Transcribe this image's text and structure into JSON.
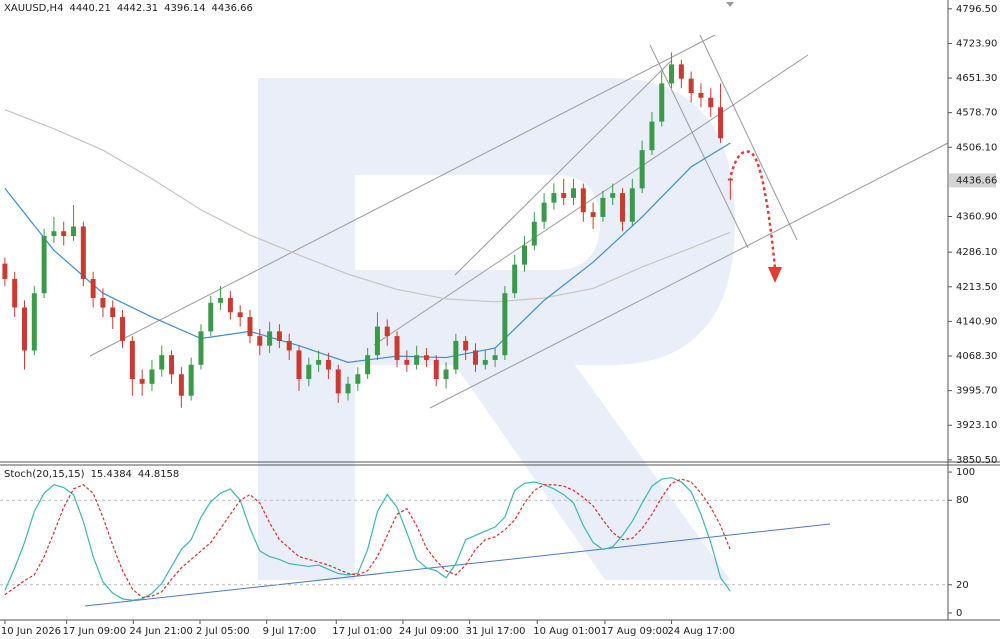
{
  "chart_data": [
    {
      "type": "candlestick",
      "title": "XAUUSD,H4",
      "up_color": "#3a9a4a",
      "down_color": "#c93a32",
      "open": [
        4262,
        4230,
        4170,
        4080,
        4200,
        4320,
        4330,
        4320,
        4340,
        4230,
        4190,
        4170,
        4150,
        4100,
        4020,
        4010,
        4040,
        4070,
        4030,
        3985,
        4050,
        4120,
        4180,
        4190,
        4160,
        4150,
        4110,
        4090,
        4120,
        4100,
        4080,
        4020,
        4050,
        4060,
        4040,
        3990,
        4010,
        4030,
        4070,
        4130,
        4110,
        4060,
        4050,
        4070,
        4060,
        4020,
        4040,
        4100,
        4080,
        4050,
        4060,
        4070,
        4200,
        4260,
        4300,
        4350,
        4390,
        4410,
        4400,
        4420,
        4370,
        4360,
        4400,
        4410,
        4350,
        4420,
        4500,
        4560,
        4640,
        4680,
        4650,
        4620,
        4610,
        4590,
        4440.21
      ],
      "high": [
        4275,
        4245,
        4185,
        4215,
        4335,
        4360,
        4350,
        4385,
        4350,
        4245,
        4210,
        4185,
        4165,
        4110,
        4040,
        4060,
        4090,
        4080,
        4045,
        4065,
        4135,
        4195,
        4215,
        4205,
        4175,
        4165,
        4125,
        4140,
        4135,
        4115,
        4090,
        4065,
        4080,
        4075,
        4050,
        4025,
        4045,
        4085,
        4160,
        4145,
        4120,
        4080,
        4090,
        4085,
        4070,
        4055,
        4115,
        4110,
        4095,
        4080,
        4085,
        4215,
        4280,
        4320,
        4370,
        4410,
        4430,
        4440,
        4440,
        4430,
        4390,
        4415,
        4430,
        4420,
        4440,
        4520,
        4580,
        4665,
        4705,
        4690,
        4665,
        4640,
        4630,
        4640,
        4442.31
      ],
      "low": [
        4215,
        4150,
        4040,
        4070,
        4190,
        4305,
        4300,
        4310,
        4215,
        4170,
        4150,
        4125,
        4085,
        3985,
        3985,
        3995,
        4025,
        4010,
        3960,
        3975,
        4040,
        4110,
        4165,
        4145,
        4130,
        4095,
        4070,
        4075,
        4085,
        4060,
        3995,
        4005,
        4035,
        4020,
        3970,
        3975,
        3995,
        4020,
        4060,
        4090,
        4045,
        4035,
        4040,
        4045,
        4005,
        4000,
        4030,
        4060,
        4035,
        4040,
        4045,
        4060,
        4190,
        4245,
        4290,
        4335,
        4375,
        4385,
        4385,
        4350,
        4335,
        4350,
        4385,
        4330,
        4340,
        4410,
        4490,
        4550,
        4630,
        4630,
        4600,
        4590,
        4570,
        4515,
        4396.14
      ],
      "close": [
        4230,
        4170,
        4080,
        4200,
        4320,
        4330,
        4320,
        4340,
        4230,
        4190,
        4170,
        4150,
        4100,
        4020,
        4010,
        4040,
        4070,
        4030,
        3985,
        4050,
        4120,
        4180,
        4190,
        4160,
        4150,
        4110,
        4090,
        4120,
        4100,
        4080,
        4020,
        4050,
        4060,
        4040,
        3990,
        4010,
        4030,
        4070,
        4130,
        4110,
        4060,
        4050,
        4070,
        4060,
        4020,
        4040,
        4100,
        4080,
        4050,
        4060,
        4070,
        4200,
        4260,
        4300,
        4350,
        4390,
        4410,
        4400,
        4420,
        4370,
        4360,
        4400,
        4410,
        4350,
        4420,
        4500,
        4560,
        4640,
        4680,
        4650,
        4620,
        4610,
        4590,
        4525,
        4436.66
      ],
      "lines": [
        {
          "color": "#c9c4bd",
          "x": [
            0,
            5,
            10,
            15,
            20,
            25,
            30,
            35,
            40,
            45,
            50,
            55,
            60,
            65,
            70,
            74
          ],
          "values": [
            4585,
            4545,
            4500,
            4440,
            4375,
            4322,
            4280,
            4240,
            4208,
            4188,
            4182,
            4190,
            4210,
            4255,
            4295,
            4328
          ]
        },
        {
          "color": "#3d8fd1",
          "x": [
            0,
            5,
            10,
            15,
            20,
            25,
            30,
            35,
            40,
            45,
            50,
            55,
            60,
            65,
            70,
            74
          ],
          "values": [
            4420,
            4290,
            4200,
            4150,
            4105,
            4120,
            4090,
            4055,
            4068,
            4065,
            4085,
            4185,
            4265,
            4360,
            4465,
            4515
          ]
        }
      ],
      "xlim": [
        -0.5,
        96.2
      ],
      "xticks": [
        {
          "value": 0,
          "label": "10 Jun 2026"
        },
        {
          "value": 6.3,
          "label": "17 Jun 09:00"
        },
        {
          "value": 13.1,
          "label": "24 Jun 21:00"
        },
        {
          "value": 19.9,
          "label": "2 Jul 05:00"
        },
        {
          "value": 26.7,
          "label": "9 Jul 17:00"
        },
        {
          "value": 33.8,
          "label": "17 Jul 01:00"
        },
        {
          "value": 40.6,
          "label": "24 Jul 09:00"
        },
        {
          "value": 47.4,
          "label": "31 Jul 17:00"
        },
        {
          "value": 54.3,
          "label": "10 Aug 01:00"
        },
        {
          "value": 61.2,
          "label": "17 Aug 09:00"
        },
        {
          "value": 68.0,
          "label": "24 Aug 17:00"
        }
      ],
      "ylim": [
        3846,
        4815
      ],
      "yticks": [
        {
          "value": 4796.5,
          "label": "4796.50"
        },
        {
          "value": 4723.9,
          "label": "4723.90"
        },
        {
          "value": 4651.3,
          "label": "4651.30"
        },
        {
          "value": 4578.7,
          "label": "4578.70"
        },
        {
          "value": 4506.1,
          "label": "4506.10"
        },
        {
          "value": 4360.9,
          "label": "4360.90"
        },
        {
          "value": 4286.1,
          "label": "4286.10"
        },
        {
          "value": 4213.5,
          "label": "4213.50"
        },
        {
          "value": 4140.9,
          "label": "4140.90"
        },
        {
          "value": 4068.3,
          "label": "4068.30"
        },
        {
          "value": 3995.7,
          "label": "3995.70"
        },
        {
          "value": 3923.1,
          "label": "3923.10"
        },
        {
          "value": 3850.5,
          "label": "3850.50"
        }
      ]
    },
    {
      "type": "line",
      "title": "Stoch(20,15,15)",
      "series": [
        {
          "color": "#3cb8b0",
          "dash": false,
          "values": [
            16,
            32,
            50,
            72,
            85,
            91,
            89,
            84,
            65,
            40,
            22,
            14,
            10,
            9,
            10,
            14,
            21,
            33,
            45,
            52,
            68,
            79,
            85,
            88,
            80,
            60,
            44,
            40,
            38,
            35,
            34,
            33,
            34,
            31,
            28,
            27,
            28,
            45,
            72,
            84,
            75,
            57,
            38,
            32,
            30,
            25,
            35,
            52,
            55,
            58,
            61,
            68,
            87,
            92,
            93,
            91,
            88,
            84,
            78,
            62,
            50,
            45,
            47,
            55,
            65,
            78,
            90,
            95,
            96,
            93,
            86,
            70,
            50,
            25,
            15.4384
          ]
        },
        {
          "color": "#d9302c",
          "dash": true,
          "values": [
            13,
            18,
            23,
            27,
            40,
            57,
            75,
            88,
            91,
            85,
            68,
            48,
            30,
            17,
            11,
            12,
            15,
            24,
            32,
            38,
            44,
            50,
            60,
            70,
            80,
            84,
            78,
            64,
            52,
            46,
            40,
            38,
            36,
            34,
            31,
            28,
            27,
            30,
            40,
            55,
            70,
            74,
            62,
            46,
            37,
            30,
            27,
            34,
            45,
            52,
            54,
            59,
            66,
            78,
            87,
            91,
            91,
            90,
            87,
            82,
            76,
            66,
            57,
            52,
            53,
            60,
            70,
            82,
            92,
            95,
            93,
            85,
            75,
            62,
            44.8158
          ]
        }
      ],
      "xlim": [
        -0.5,
        96.2
      ],
      "ylim": [
        -5,
        105
      ],
      "yticks": [
        0,
        20,
        80,
        100
      ],
      "levels": [
        20,
        80
      ]
    }
  ]
}
